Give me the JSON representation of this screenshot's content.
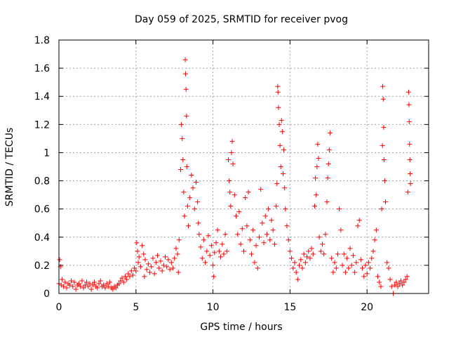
{
  "chart_data": {
    "type": "scatter",
    "title": "Day 059 of 2025, SRMTID for receiver pvog",
    "xlabel": "GPS time / hours",
    "ylabel": "SRMTID / TECUs",
    "xlim": [
      0,
      24
    ],
    "ylim": [
      0,
      1.8
    ],
    "xticks": [
      0,
      5,
      10,
      15,
      20
    ],
    "xtick_labels": [
      "0",
      "5",
      "10",
      "15",
      "20"
    ],
    "yticks": [
      0,
      0.2,
      0.4,
      0.6,
      0.8,
      1.0,
      1.2,
      1.4,
      1.6,
      1.8
    ],
    "ytick_labels": [
      "0",
      "0.2",
      "0.4",
      "0.6",
      "0.8",
      "1",
      "1.2",
      "1.4",
      "1.6",
      "1.8"
    ],
    "grid": true,
    "marker": "+",
    "marker_color": "#ff0000",
    "series": [
      {
        "name": "SRMTID",
        "points": [
          [
            0.0,
            0.07
          ],
          [
            0.05,
            0.24
          ],
          [
            0.1,
            0.19
          ],
          [
            0.15,
            0.06
          ],
          [
            0.2,
            0.1
          ],
          [
            0.3,
            0.05
          ],
          [
            0.4,
            0.08
          ],
          [
            0.5,
            0.04
          ],
          [
            0.6,
            0.07
          ],
          [
            0.7,
            0.06
          ],
          [
            0.8,
            0.09
          ],
          [
            0.9,
            0.05
          ],
          [
            1.0,
            0.08
          ],
          [
            1.1,
            0.03
          ],
          [
            1.2,
            0.06
          ],
          [
            1.3,
            0.07
          ],
          [
            1.4,
            0.05
          ],
          [
            1.5,
            0.09
          ],
          [
            1.6,
            0.04
          ],
          [
            1.7,
            0.06
          ],
          [
            1.8,
            0.08
          ],
          [
            1.9,
            0.05
          ],
          [
            2.0,
            0.07
          ],
          [
            2.1,
            0.03
          ],
          [
            2.2,
            0.06
          ],
          [
            2.3,
            0.08
          ],
          [
            2.4,
            0.05
          ],
          [
            2.5,
            0.04
          ],
          [
            2.6,
            0.07
          ],
          [
            2.7,
            0.09
          ],
          [
            2.8,
            0.05
          ],
          [
            2.9,
            0.06
          ],
          [
            3.0,
            0.04
          ],
          [
            3.1,
            0.07
          ],
          [
            3.2,
            0.05
          ],
          [
            3.3,
            0.08
          ],
          [
            3.4,
            0.04
          ],
          [
            3.5,
            0.03
          ],
          [
            3.6,
            0.05
          ],
          [
            3.7,
            0.04
          ],
          [
            3.8,
            0.06
          ],
          [
            3.9,
            0.07
          ],
          [
            4.0,
            0.09
          ],
          [
            4.1,
            0.11
          ],
          [
            4.2,
            0.08
          ],
          [
            4.3,
            0.12
          ],
          [
            4.4,
            0.1
          ],
          [
            4.5,
            0.14
          ],
          [
            4.6,
            0.12
          ],
          [
            4.7,
            0.16
          ],
          [
            4.8,
            0.13
          ],
          [
            4.9,
            0.18
          ],
          [
            5.0,
            0.16
          ],
          [
            5.05,
            0.36
          ],
          [
            5.1,
            0.3
          ],
          [
            5.15,
            0.22
          ],
          [
            5.2,
            0.26
          ],
          [
            5.3,
            0.19
          ],
          [
            5.4,
            0.34
          ],
          [
            5.5,
            0.28
          ],
          [
            5.55,
            0.12
          ],
          [
            5.6,
            0.24
          ],
          [
            5.7,
            0.17
          ],
          [
            5.8,
            0.21
          ],
          [
            5.9,
            0.15
          ],
          [
            6.0,
            0.19
          ],
          [
            6.1,
            0.25
          ],
          [
            6.2,
            0.14
          ],
          [
            6.3,
            0.22
          ],
          [
            6.4,
            0.27
          ],
          [
            6.5,
            0.18
          ],
          [
            6.6,
            0.23
          ],
          [
            6.7,
            0.16
          ],
          [
            6.8,
            0.2
          ],
          [
            6.9,
            0.26
          ],
          [
            7.0,
            0.19
          ],
          [
            7.1,
            0.24
          ],
          [
            7.2,
            0.17
          ],
          [
            7.3,
            0.22
          ],
          [
            7.4,
            0.18
          ],
          [
            7.5,
            0.25
          ],
          [
            7.6,
            0.32
          ],
          [
            7.7,
            0.28
          ],
          [
            7.75,
            0.15
          ],
          [
            7.8,
            0.38
          ],
          [
            7.9,
            0.88
          ],
          [
            7.95,
            1.2
          ],
          [
            8.0,
            1.1
          ],
          [
            8.05,
            0.95
          ],
          [
            8.1,
            0.72
          ],
          [
            8.15,
            0.55
          ],
          [
            8.2,
            1.66
          ],
          [
            8.22,
            1.56
          ],
          [
            8.25,
            1.45
          ],
          [
            8.28,
            1.26
          ],
          [
            8.3,
            0.9
          ],
          [
            8.35,
            0.62
          ],
          [
            8.4,
            0.48
          ],
          [
            8.5,
            0.68
          ],
          [
            8.6,
            0.84
          ],
          [
            8.7,
            0.75
          ],
          [
            8.8,
            0.6
          ],
          [
            8.9,
            0.79
          ],
          [
            9.0,
            0.65
          ],
          [
            9.05,
            0.5
          ],
          [
            9.1,
            0.42
          ],
          [
            9.2,
            0.33
          ],
          [
            9.3,
            0.25
          ],
          [
            9.4,
            0.38
          ],
          [
            9.5,
            0.22
          ],
          [
            9.6,
            0.3
          ],
          [
            9.7,
            0.41
          ],
          [
            9.8,
            0.27
          ],
          [
            9.9,
            0.34
          ],
          [
            10.0,
            0.2
          ],
          [
            10.05,
            0.12
          ],
          [
            10.1,
            0.29
          ],
          [
            10.2,
            0.36
          ],
          [
            10.3,
            0.45
          ],
          [
            10.4,
            0.3
          ],
          [
            10.5,
            0.26
          ],
          [
            10.6,
            0.35
          ],
          [
            10.7,
            0.28
          ],
          [
            10.8,
            0.42
          ],
          [
            10.9,
            0.3
          ],
          [
            11.0,
            0.95
          ],
          [
            11.05,
            0.8
          ],
          [
            11.1,
            0.72
          ],
          [
            11.15,
            0.62
          ],
          [
            11.2,
            1.0
          ],
          [
            11.25,
            1.08
          ],
          [
            11.3,
            0.92
          ],
          [
            11.4,
            0.7
          ],
          [
            11.5,
            0.55
          ],
          [
            11.6,
            0.42
          ],
          [
            11.7,
            0.58
          ],
          [
            11.8,
            0.35
          ],
          [
            11.9,
            0.46
          ],
          [
            12.0,
            0.3
          ],
          [
            12.1,
            0.68
          ],
          [
            12.2,
            0.48
          ],
          [
            12.3,
            0.72
          ],
          [
            12.4,
            0.38
          ],
          [
            12.5,
            0.28
          ],
          [
            12.6,
            0.45
          ],
          [
            12.7,
            0.22
          ],
          [
            12.8,
            0.34
          ],
          [
            12.9,
            0.18
          ],
          [
            13.0,
            0.4
          ],
          [
            13.1,
            0.74
          ],
          [
            13.2,
            0.5
          ],
          [
            13.3,
            0.36
          ],
          [
            13.4,
            0.55
          ],
          [
            13.5,
            0.42
          ],
          [
            13.6,
            0.6
          ],
          [
            13.7,
            0.38
          ],
          [
            13.8,
            0.52
          ],
          [
            13.9,
            0.45
          ],
          [
            14.0,
            0.35
          ],
          [
            14.1,
            0.62
          ],
          [
            14.15,
            0.78
          ],
          [
            14.2,
            1.47
          ],
          [
            14.22,
            1.43
          ],
          [
            14.25,
            1.32
          ],
          [
            14.3,
            1.2
          ],
          [
            14.35,
            1.05
          ],
          [
            14.4,
            0.9
          ],
          [
            14.45,
            1.23
          ],
          [
            14.5,
            1.15
          ],
          [
            14.55,
            0.85
          ],
          [
            14.6,
            1.02
          ],
          [
            14.65,
            0.75
          ],
          [
            14.7,
            0.6
          ],
          [
            14.8,
            0.48
          ],
          [
            14.9,
            0.38
          ],
          [
            15.0,
            0.3
          ],
          [
            15.1,
            0.25
          ],
          [
            15.2,
            0.18
          ],
          [
            15.3,
            0.22
          ],
          [
            15.4,
            0.15
          ],
          [
            15.5,
            0.1
          ],
          [
            15.6,
            0.2
          ],
          [
            15.7,
            0.24
          ],
          [
            15.8,
            0.18
          ],
          [
            15.9,
            0.28
          ],
          [
            16.0,
            0.22
          ],
          [
            16.1,
            0.26
          ],
          [
            16.2,
            0.3
          ],
          [
            16.3,
            0.25
          ],
          [
            16.4,
            0.32
          ],
          [
            16.5,
            0.28
          ],
          [
            16.6,
            0.62
          ],
          [
            16.65,
            0.82
          ],
          [
            16.7,
            0.7
          ],
          [
            16.75,
            0.9
          ],
          [
            16.8,
            1.06
          ],
          [
            16.85,
            0.96
          ],
          [
            16.9,
            0.4
          ],
          [
            17.0,
            0.3
          ],
          [
            17.1,
            0.35
          ],
          [
            17.2,
            0.28
          ],
          [
            17.3,
            0.42
          ],
          [
            17.4,
            0.65
          ],
          [
            17.45,
            0.82
          ],
          [
            17.5,
            0.92
          ],
          [
            17.55,
            1.02
          ],
          [
            17.6,
            1.14
          ],
          [
            17.7,
            0.25
          ],
          [
            17.8,
            0.15
          ],
          [
            17.9,
            0.22
          ],
          [
            18.0,
            0.18
          ],
          [
            18.1,
            0.28
          ],
          [
            18.2,
            0.6
          ],
          [
            18.3,
            0.45
          ],
          [
            18.4,
            0.2
          ],
          [
            18.5,
            0.28
          ],
          [
            18.6,
            0.15
          ],
          [
            18.7,
            0.25
          ],
          [
            18.8,
            0.18
          ],
          [
            18.9,
            0.32
          ],
          [
            19.0,
            0.2
          ],
          [
            19.1,
            0.27
          ],
          [
            19.2,
            0.15
          ],
          [
            19.3,
            0.22
          ],
          [
            19.4,
            0.48
          ],
          [
            19.5,
            0.52
          ],
          [
            19.6,
            0.24
          ],
          [
            19.7,
            0.18
          ],
          [
            19.8,
            0.12
          ],
          [
            19.9,
            0.2
          ],
          [
            20.0,
            0.14
          ],
          [
            20.1,
            0.22
          ],
          [
            20.2,
            0.18
          ],
          [
            20.3,
            0.25
          ],
          [
            20.4,
            0.3
          ],
          [
            20.5,
            0.38
          ],
          [
            20.6,
            0.45
          ],
          [
            20.7,
            0.12
          ],
          [
            20.8,
            0.08
          ],
          [
            20.9,
            0.05
          ],
          [
            20.95,
            0.6
          ],
          [
            21.0,
            1.05
          ],
          [
            21.02,
            1.47
          ],
          [
            21.05,
            1.38
          ],
          [
            21.08,
            1.18
          ],
          [
            21.1,
            0.95
          ],
          [
            21.15,
            0.8
          ],
          [
            21.2,
            0.65
          ],
          [
            21.3,
            0.22
          ],
          [
            21.4,
            0.18
          ],
          [
            21.5,
            0.1
          ],
          [
            21.6,
            0.05
          ],
          [
            21.7,
            0.0
          ],
          [
            21.8,
            0.06
          ],
          [
            21.9,
            0.08
          ],
          [
            22.0,
            0.05
          ],
          [
            22.1,
            0.07
          ],
          [
            22.2,
            0.09
          ],
          [
            22.3,
            0.06
          ],
          [
            22.4,
            0.08
          ],
          [
            22.5,
            0.1
          ],
          [
            22.6,
            0.12
          ],
          [
            22.65,
            0.72
          ],
          [
            22.7,
            1.43
          ],
          [
            22.72,
            1.34
          ],
          [
            22.74,
            1.22
          ],
          [
            22.76,
            1.06
          ],
          [
            22.78,
            0.95
          ],
          [
            22.8,
            0.85
          ],
          [
            22.82,
            0.78
          ]
        ]
      }
    ]
  }
}
